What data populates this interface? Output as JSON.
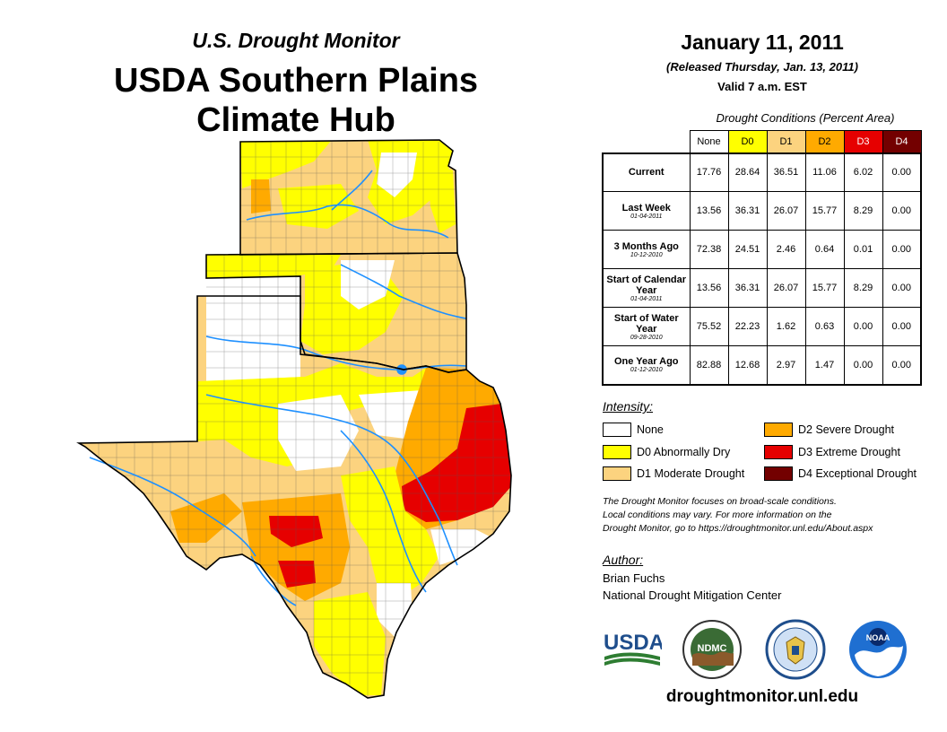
{
  "header": {
    "subtitle": "U.S. Drought Monitor",
    "title_line1": "USDA Southern Plains",
    "title_line2": "Climate Hub"
  },
  "release": {
    "date": "January 11, 2011",
    "released": "(Released Thursday, Jan. 13, 2011)",
    "valid": "Valid 7 a.m. EST"
  },
  "table": {
    "caption": "Drought Conditions (Percent Area)",
    "columns": [
      "None",
      "D0",
      "D1",
      "D2",
      "D3",
      "D4"
    ],
    "column_colors": [
      "#ffffff",
      "#ffff00",
      "#fcd37f",
      "#ffaa00",
      "#e60000",
      "#730000"
    ],
    "rows": [
      {
        "label": "Current",
        "sub": "",
        "values": [
          "17.76",
          "28.64",
          "36.51",
          "11.06",
          "6.02",
          "0.00"
        ]
      },
      {
        "label": "Last Week",
        "sub": "01-04-2011",
        "values": [
          "13.56",
          "36.31",
          "26.07",
          "15.77",
          "8.29",
          "0.00"
        ]
      },
      {
        "label": "3 Months Ago",
        "sub": "10-12-2010",
        "values": [
          "72.38",
          "24.51",
          "2.46",
          "0.64",
          "0.01",
          "0.00"
        ]
      },
      {
        "label": "Start of Calendar Year",
        "sub": "01-04-2011",
        "values": [
          "13.56",
          "36.31",
          "26.07",
          "15.77",
          "8.29",
          "0.00"
        ]
      },
      {
        "label": "Start of Water Year",
        "sub": "09-28-2010",
        "values": [
          "75.52",
          "22.23",
          "1.62",
          "0.63",
          "0.00",
          "0.00"
        ]
      },
      {
        "label": "One Year Ago",
        "sub": "01-12-2010",
        "values": [
          "82.88",
          "12.68",
          "2.97",
          "1.47",
          "0.00",
          "0.00"
        ]
      }
    ]
  },
  "legend": {
    "title": "Intensity:",
    "items": [
      {
        "label": "None",
        "color": "#ffffff"
      },
      {
        "label": "D0 Abnormally Dry",
        "color": "#ffff00"
      },
      {
        "label": "D1 Moderate Drought",
        "color": "#fcd37f"
      },
      {
        "label": "D2 Severe Drought",
        "color": "#ffaa00"
      },
      {
        "label": "D3 Extreme Drought",
        "color": "#e60000"
      },
      {
        "label": "D4 Exceptional Drought",
        "color": "#730000"
      }
    ]
  },
  "note": {
    "line1": "The Drought Monitor focuses on broad-scale conditions.",
    "line2": "Local conditions may vary. For more information on the",
    "line3": "Drought Monitor, go to https://droughtmonitor.unl.edu/About.aspx"
  },
  "author": {
    "title": "Author:",
    "name": "Brian Fuchs",
    "org": "National Drought Mitigation Center"
  },
  "logos": {
    "usda": "USDA",
    "ndmc": "NDMC",
    "noaa": "NOAA"
  },
  "footer": {
    "url": "droughtmonitor.unl.edu"
  }
}
